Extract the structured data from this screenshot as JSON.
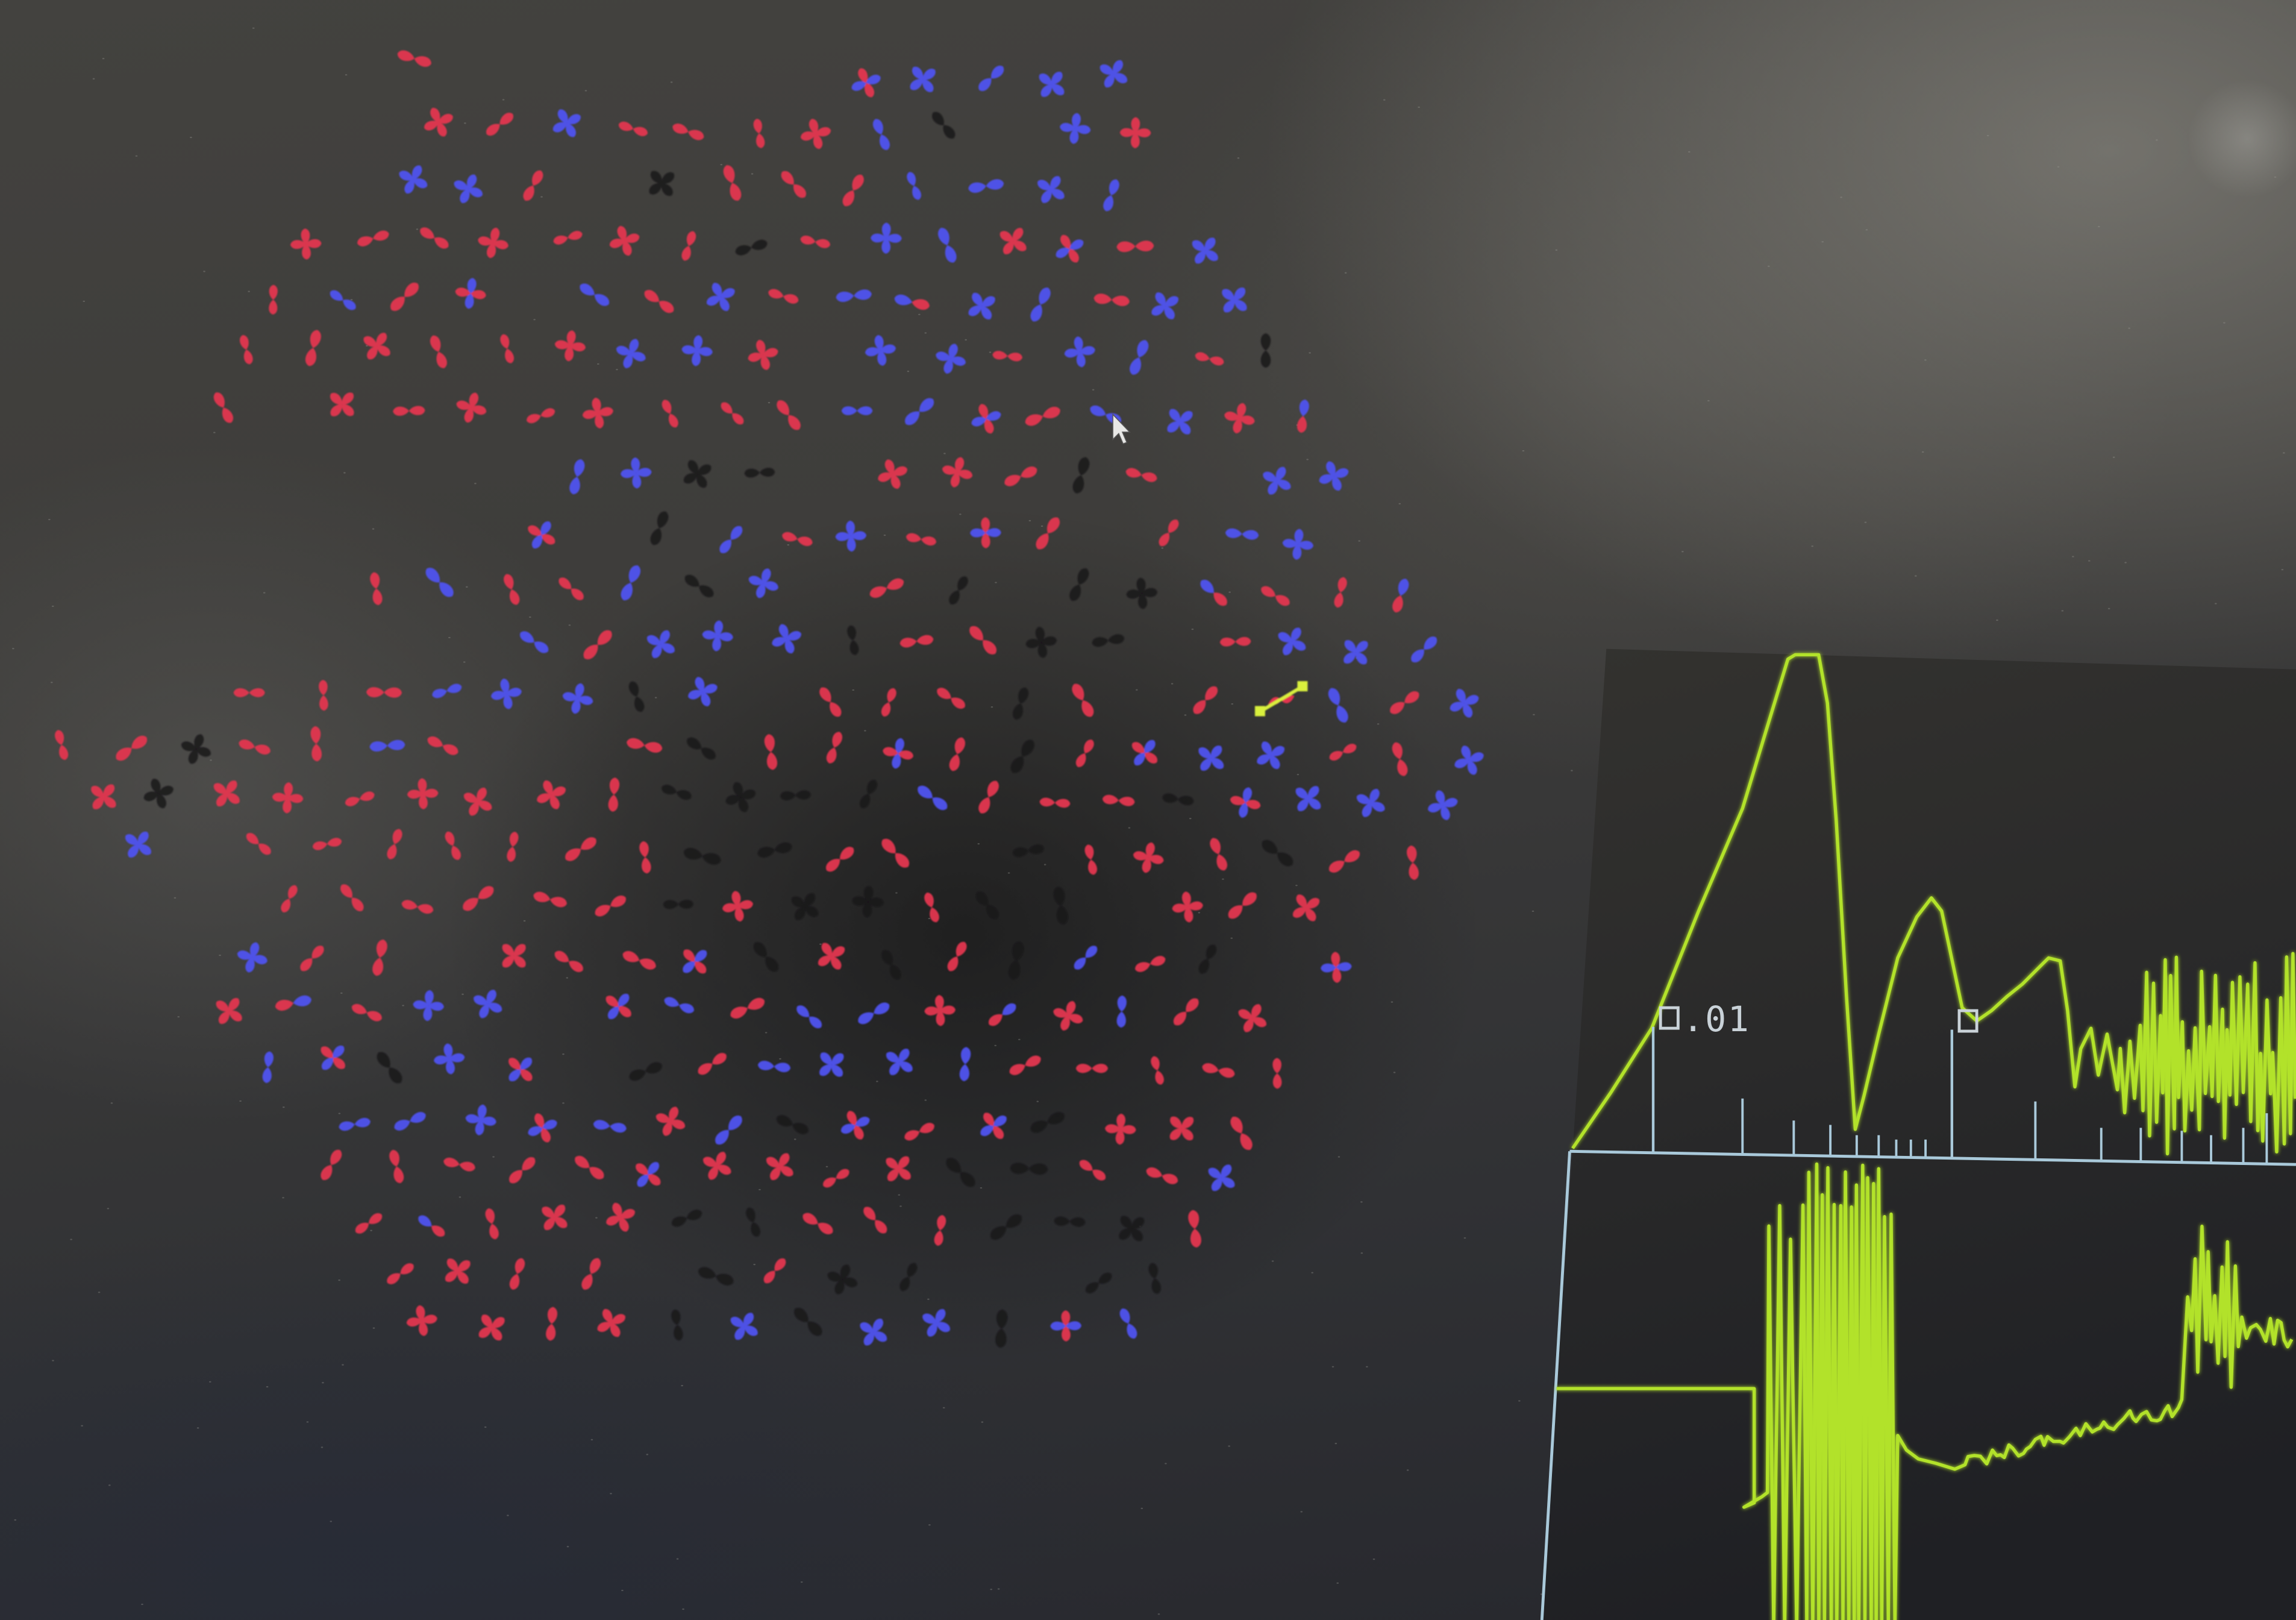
{
  "palette": {
    "plot_panel_top": "#33322f",
    "plot_panel_bottom": "#1f2024",
    "orbital_red": "#e3364f",
    "orbital_blue": "#4f52ef",
    "orbital_black": "#151417",
    "selection": "#d9f03c",
    "trace": "#b2e22c",
    "axis": "#a9c9da",
    "label": "#c9d2d8",
    "pointer": "#e8e8e6"
  },
  "glyph_field": {
    "glyph_icons": [
      "two-lobe-orbital-icon",
      "four-lobe-orbital-icon"
    ]
  },
  "plot": {
    "cursor_readout": ".01",
    "marker_icon": "square-marker-icon"
  },
  "pointer": {
    "icon": "arrow-pointer-icon"
  }
}
